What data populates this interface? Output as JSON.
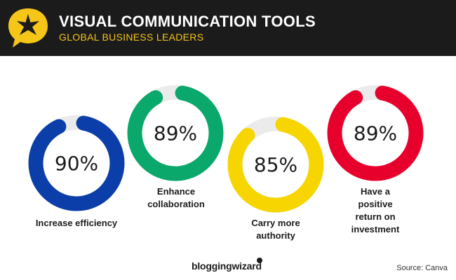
{
  "header": {
    "title": "VISUAL COMMUNICATION TOOLS",
    "subtitle": "GLOBAL BUSINESS LEADERS",
    "icon": "star-speech-bubble-icon",
    "accent_color": "#f5c518"
  },
  "chart_data": {
    "type": "donut",
    "title": "VISUAL COMMUNICATION TOOLS",
    "subtitle": "GLOBAL BUSINESS LEADERS",
    "track_color": "#ebebeb",
    "series": [
      {
        "label": "Increase efficiency",
        "value": 90,
        "display": "90%",
        "color": "#0b3ea8"
      },
      {
        "label": "Enhance collaboration",
        "value": 89,
        "display": "89%",
        "color": "#0aa86a"
      },
      {
        "label": "Carry more authority",
        "value": 85,
        "display": "85%",
        "color": "#f7d500"
      },
      {
        "label": "Have a positive return on investment",
        "value": 89,
        "display": "89%",
        "color": "#e8002d"
      }
    ]
  },
  "footer": {
    "brand": "bloggingwizard",
    "source": "Source: Canva"
  }
}
